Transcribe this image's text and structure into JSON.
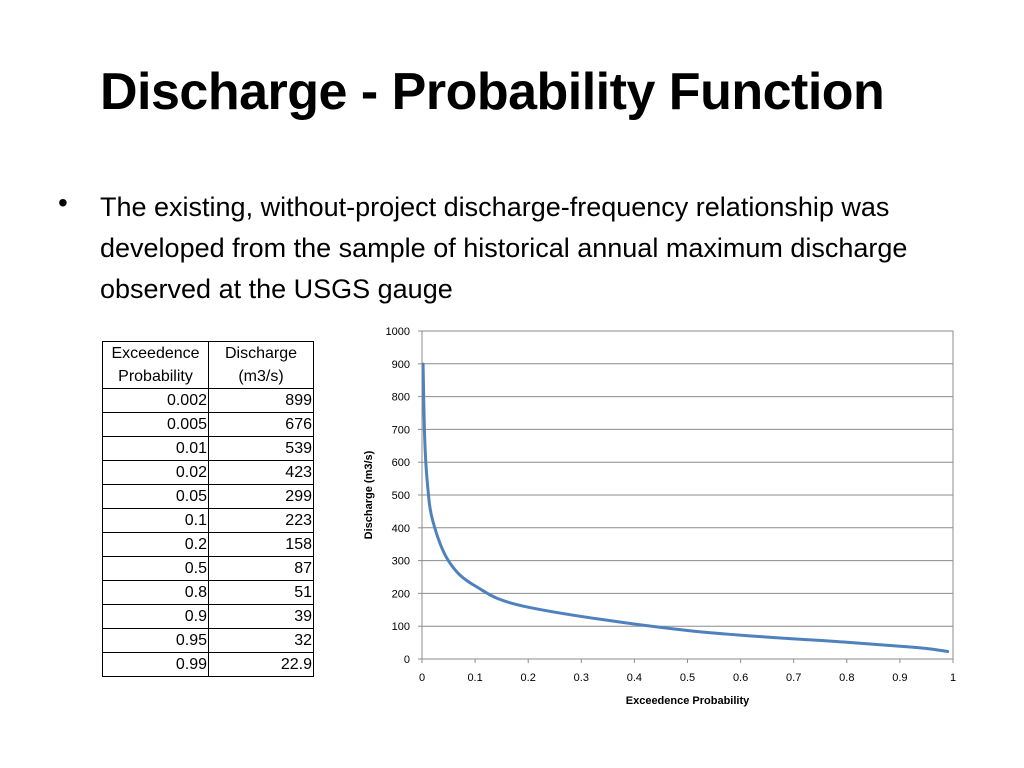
{
  "slide": {
    "title": "Discharge - Probability Function",
    "bullet_symbol": "•",
    "bullet_text": "The existing, without-project discharge-frequency relationship was developed from the sample of historical annual maximum discharge observed at the USGS gauge"
  },
  "table": {
    "headers": [
      [
        "Exceedence",
        "Probability"
      ],
      [
        "Discharge",
        "(m3/s)"
      ]
    ],
    "rows": [
      [
        "0.002",
        "899"
      ],
      [
        "0.005",
        "676"
      ],
      [
        "0.01",
        "539"
      ],
      [
        "0.02",
        "423"
      ],
      [
        "0.05",
        "299"
      ],
      [
        "0.1",
        "223"
      ],
      [
        "0.2",
        "158"
      ],
      [
        "0.5",
        "87"
      ],
      [
        "0.8",
        "51"
      ],
      [
        "0.9",
        "39"
      ],
      [
        "0.95",
        "32"
      ],
      [
        "0.99",
        "22.9"
      ]
    ]
  },
  "chart_data": {
    "type": "line",
    "title": "",
    "xlabel": "Exceedence Probability",
    "ylabel": "Discharge (m3/s)",
    "xlim": [
      0,
      1
    ],
    "ylim": [
      0,
      1000
    ],
    "xticks": [
      "0",
      "0.1",
      "0.2",
      "0.3",
      "0.4",
      "0.5",
      "0.6",
      "0.7",
      "0.8",
      "0.9",
      "1"
    ],
    "yticks": [
      "0",
      "100",
      "200",
      "300",
      "400",
      "500",
      "600",
      "700",
      "800",
      "900",
      "1000"
    ],
    "grid": "horizontal",
    "legend": "none",
    "series": [
      {
        "color": "#4f81bd",
        "x": [
          0.002,
          0.005,
          0.01,
          0.02,
          0.05,
          0.1,
          0.2,
          0.5,
          0.8,
          0.9,
          0.95,
          0.99
        ],
        "y": [
          899,
          676,
          539,
          423,
          299,
          223,
          158,
          87,
          51,
          39,
          32,
          22.9
        ]
      }
    ]
  }
}
